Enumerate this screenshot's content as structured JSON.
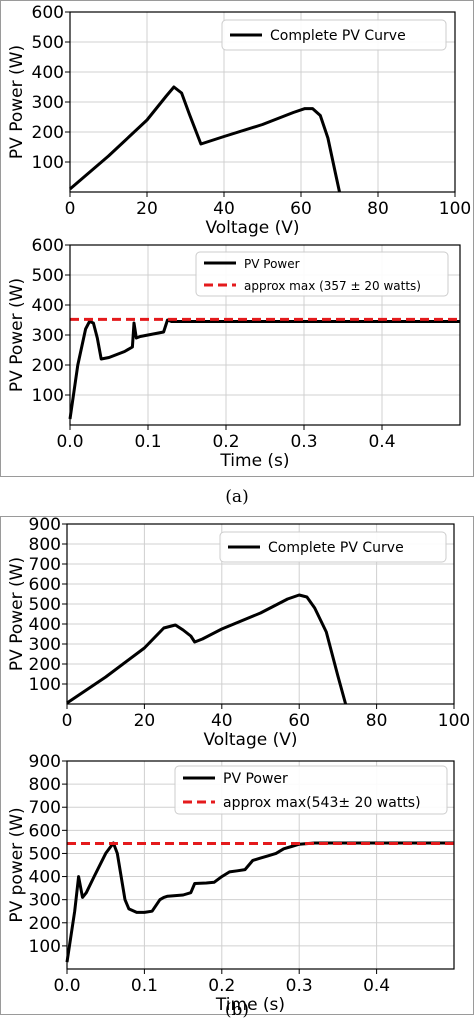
{
  "captions": {
    "a": "(a)",
    "b": "(b)"
  },
  "chart_data": [
    {
      "id": "a-top",
      "type": "line",
      "title": "",
      "xlabel": "Voltage (V)",
      "ylabel": "PV Power (W)",
      "xlim": [
        0,
        100
      ],
      "ylim": [
        0,
        600
      ],
      "xticks": [
        0,
        20,
        40,
        60,
        80,
        100
      ],
      "yticks": [
        100,
        200,
        300,
        400,
        500,
        600
      ],
      "grid": true,
      "legend": "top-right",
      "series": [
        {
          "name": "Complete PV Curve",
          "color": "#000000",
          "style": "solid",
          "x": [
            0,
            10,
            20,
            25,
            27,
            29,
            31,
            34,
            40,
            50,
            58,
            61,
            63,
            65,
            67,
            69,
            70
          ],
          "y": [
            10,
            120,
            240,
            320,
            350,
            330,
            260,
            160,
            185,
            225,
            265,
            278,
            278,
            255,
            180,
            60,
            0
          ]
        }
      ]
    },
    {
      "id": "a-bottom",
      "type": "line",
      "title": "",
      "xlabel": "Time (s)",
      "ylabel": "PV Power (W)",
      "xlim": [
        0,
        0.5
      ],
      "ylim": [
        0,
        600
      ],
      "xticks": [
        0.0,
        0.1,
        0.2,
        0.3,
        0.4
      ],
      "yticks": [
        100,
        200,
        300,
        400,
        500,
        600
      ],
      "grid": true,
      "legend": "top-right",
      "series": [
        {
          "name": "PV Power",
          "color": "#000000",
          "style": "solid",
          "x": [
            0.0,
            0.01,
            0.02,
            0.025,
            0.03,
            0.035,
            0.04,
            0.05,
            0.06,
            0.07,
            0.08,
            0.082,
            0.085,
            0.09,
            0.1,
            0.11,
            0.12,
            0.125,
            0.13,
            0.5
          ],
          "y": [
            20,
            200,
            320,
            345,
            340,
            290,
            220,
            225,
            235,
            245,
            260,
            340,
            290,
            295,
            300,
            305,
            310,
            350,
            345,
            345
          ]
        },
        {
          "name": "approx max (357 ± 20 watts)",
          "color": "#e41a1c",
          "style": "dashed",
          "x": [
            0,
            0.5
          ],
          "y": [
            352,
            352
          ]
        }
      ]
    },
    {
      "id": "b-top",
      "type": "line",
      "title": "",
      "xlabel": "Voltage (V)",
      "ylabel": "PV Power (W)",
      "xlim": [
        0,
        100
      ],
      "ylim": [
        0,
        900
      ],
      "xticks": [
        0,
        20,
        40,
        60,
        80,
        100
      ],
      "yticks": [
        100,
        200,
        300,
        400,
        500,
        600,
        700,
        800,
        900
      ],
      "grid": true,
      "legend": "top-right",
      "series": [
        {
          "name": "Complete PV Curve",
          "color": "#000000",
          "style": "solid",
          "x": [
            0,
            10,
            20,
            25,
            28,
            30,
            32,
            33,
            35,
            40,
            50,
            57,
            60,
            62,
            64,
            67,
            70,
            72
          ],
          "y": [
            5,
            135,
            280,
            380,
            395,
            370,
            340,
            310,
            325,
            375,
            455,
            525,
            545,
            535,
            480,
            360,
            140,
            0
          ]
        }
      ]
    },
    {
      "id": "b-bottom",
      "type": "line",
      "title": "",
      "xlabel": "Time (s)",
      "ylabel": "PV power (W)",
      "xlim": [
        0,
        0.5
      ],
      "ylim": [
        0,
        900
      ],
      "xticks": [
        0.0,
        0.1,
        0.2,
        0.3,
        0.4
      ],
      "yticks": [
        100,
        200,
        300,
        400,
        500,
        600,
        700,
        800,
        900
      ],
      "grid": true,
      "legend": "top-right",
      "series": [
        {
          "name": "PV Power",
          "color": "#000000",
          "style": "solid",
          "x": [
            0.0,
            0.01,
            0.015,
            0.02,
            0.025,
            0.035,
            0.05,
            0.06,
            0.065,
            0.075,
            0.08,
            0.09,
            0.1,
            0.11,
            0.12,
            0.125,
            0.13,
            0.15,
            0.16,
            0.165,
            0.18,
            0.19,
            0.2,
            0.21,
            0.22,
            0.23,
            0.235,
            0.24,
            0.25,
            0.26,
            0.27,
            0.28,
            0.29,
            0.3,
            0.32,
            0.5
          ],
          "y": [
            30,
            250,
            400,
            310,
            330,
            400,
            500,
            545,
            500,
            300,
            260,
            245,
            245,
            250,
            300,
            310,
            315,
            320,
            330,
            370,
            372,
            375,
            400,
            420,
            425,
            430,
            450,
            470,
            480,
            490,
            500,
            520,
            530,
            540,
            545,
            545
          ]
        },
        {
          "name": "approx max(543± 20 watts)",
          "color": "#e41a1c",
          "style": "dashed",
          "x": [
            0,
            0.5
          ],
          "y": [
            543,
            543
          ]
        }
      ]
    }
  ]
}
